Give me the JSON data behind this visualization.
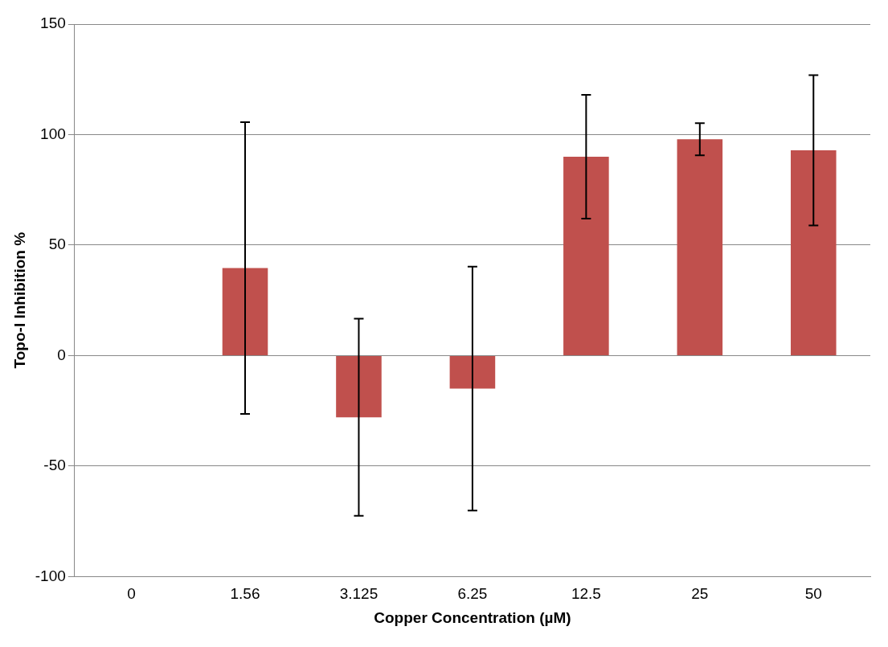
{
  "chart_data": {
    "type": "bar",
    "xlabel": "Copper Concentration (µM)",
    "ylabel": "Topo-I Inhibition %",
    "categories": [
      "0",
      "1.56",
      "3.125",
      "6.25",
      "12.5",
      "25",
      "50"
    ],
    "values": [
      0,
      39.6,
      -27.9,
      -14.9,
      90,
      97.9,
      92.9
    ],
    "errors": [
      null,
      66,
      44.6,
      55.2,
      28,
      7.3,
      34
    ],
    "color": "#c0504d",
    "ylim": [
      -100,
      150
    ],
    "yticks": [
      -100,
      -50,
      0,
      50,
      100,
      150
    ],
    "grid": "y"
  }
}
